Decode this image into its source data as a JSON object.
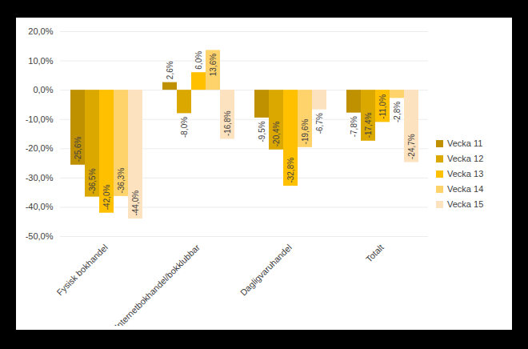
{
  "chart_data": {
    "type": "bar",
    "categories": [
      "Fysisk bokhandel",
      "Internetbokhandel/bokklubbar",
      "Dagligvaruhandel",
      "Totalt"
    ],
    "series": [
      {
        "name": "Vecka 11",
        "color": "#bf9000",
        "values": [
          -25.6,
          2.6,
          -9.5,
          -7.8
        ],
        "value_labels": [
          "-25,6%",
          "2,6%",
          "-9,5%",
          "-7,8%"
        ]
      },
      {
        "name": "Vecka 12",
        "color": "#dba800",
        "values": [
          -36.5,
          -8.0,
          -20.4,
          -17.4
        ],
        "value_labels": [
          "-36,5%",
          "-8,0%",
          "-20,4%",
          "-17,4%"
        ]
      },
      {
        "name": "Vecka 13",
        "color": "#ffc000",
        "values": [
          -42.0,
          6.0,
          -32.8,
          -11.0
        ],
        "value_labels": [
          "-42,0%",
          "6,0%",
          "-32,8%",
          "-11,0%"
        ]
      },
      {
        "name": "Vecka 14",
        "color": "#ffd36b",
        "values": [
          -36.3,
          13.6,
          -19.6,
          -2.8
        ],
        "value_labels": [
          "-36,3%",
          "13,6%",
          "-19,6%",
          "-2,8%"
        ]
      },
      {
        "name": "Vecka 15",
        "color": "#fde2bf",
        "values": [
          -44.0,
          -16.8,
          -6.7,
          -24.7
        ],
        "value_labels": [
          "-44,0%",
          "-16,8%",
          "-6,7%",
          "-24,7%"
        ]
      }
    ],
    "ylim": [
      -50,
      20
    ],
    "yticks": [
      {
        "value": 20,
        "label": "20,0%"
      },
      {
        "value": 10,
        "label": "10,0%"
      },
      {
        "value": 0,
        "label": "0,0%"
      },
      {
        "value": -10,
        "label": "-10,0%"
      },
      {
        "value": -20,
        "label": "-20,0%"
      },
      {
        "value": -30,
        "label": "-30,0%"
      },
      {
        "value": -40,
        "label": "-40,0%"
      },
      {
        "value": -50,
        "label": "-50,0%"
      }
    ],
    "grid": true,
    "data_labels": true,
    "legend": "right"
  }
}
